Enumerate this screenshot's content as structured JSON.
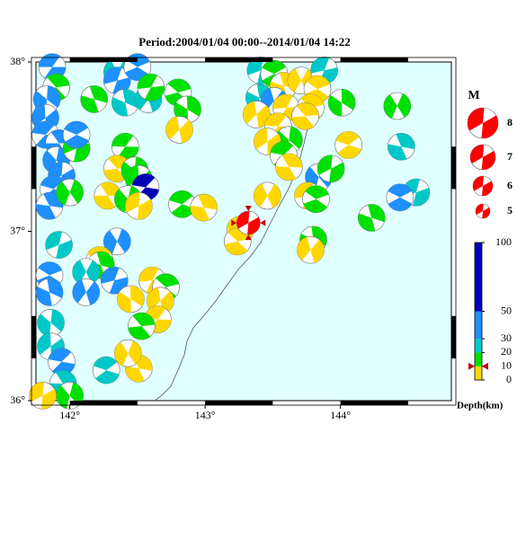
{
  "title": "Period:2004/01/04 00:00--2014/01/04 14:22",
  "map": {
    "xlim": [
      141.75,
      144.82
    ],
    "ylim": [
      36,
      38
    ],
    "xticks": [
      {
        "value": 142,
        "label": "142°"
      },
      {
        "value": 143,
        "label": "143°"
      },
      {
        "value": 144,
        "label": "144°"
      }
    ],
    "yticks": [
      {
        "value": 36,
        "label": "36°"
      },
      {
        "value": 37,
        "label": "37°"
      },
      {
        "value": 38,
        "label": "38°"
      }
    ],
    "background": "#e0ffff"
  },
  "events": [
    [
      141.87,
      37.97,
      40
    ],
    [
      141.9,
      37.85,
      15
    ],
    [
      141.83,
      37.78,
      40
    ],
    [
      141.82,
      37.67,
      40
    ],
    [
      141.82,
      37.57,
      40
    ],
    [
      141.92,
      37.52,
      40
    ],
    [
      141.9,
      37.42,
      40
    ],
    [
      141.94,
      37.33,
      40
    ],
    [
      141.88,
      37.25,
      40
    ],
    [
      141.85,
      37.15,
      40
    ],
    [
      142.0,
      37.23,
      15
    ],
    [
      142.05,
      37.49,
      15
    ],
    [
      142.05,
      37.57,
      40
    ],
    [
      142.18,
      37.78,
      15
    ],
    [
      142.35,
      37.94,
      25
    ],
    [
      142.35,
      37.89,
      40
    ],
    [
      142.5,
      37.97,
      40
    ],
    [
      142.41,
      37.76,
      25
    ],
    [
      142.58,
      37.78,
      25
    ],
    [
      142.6,
      37.85,
      15
    ],
    [
      142.8,
      37.82,
      15
    ],
    [
      142.87,
      37.72,
      15
    ],
    [
      142.81,
      37.6,
      5
    ],
    [
      142.41,
      37.5,
      15
    ],
    [
      142.35,
      37.37,
      5
    ],
    [
      142.48,
      37.36,
      15
    ],
    [
      142.51,
      37.31,
      15
    ],
    [
      142.56,
      37.26,
      70
    ],
    [
      142.28,
      37.21,
      5
    ],
    [
      142.43,
      37.19,
      15
    ],
    [
      142.51,
      37.15,
      5
    ],
    [
      142.83,
      37.16,
      15
    ],
    [
      142.99,
      37.14,
      5
    ],
    [
      142.35,
      36.94,
      40
    ],
    [
      141.92,
      36.92,
      25
    ],
    [
      142.22,
      36.83,
      5
    ],
    [
      142.23,
      36.8,
      15
    ],
    [
      142.12,
      36.76,
      25
    ],
    [
      142.33,
      36.71,
      40
    ],
    [
      141.85,
      36.74,
      40
    ],
    [
      141.85,
      36.64,
      40
    ],
    [
      142.12,
      36.64,
      40
    ],
    [
      142.61,
      36.71,
      5
    ],
    [
      142.71,
      36.67,
      15
    ],
    [
      142.45,
      36.6,
      5
    ],
    [
      142.67,
      36.59,
      5
    ],
    [
      142.65,
      36.48,
      5
    ],
    [
      142.53,
      36.44,
      15
    ],
    [
      141.86,
      36.46,
      25
    ],
    [
      141.86,
      36.32,
      25
    ],
    [
      141.94,
      36.23,
      40
    ],
    [
      141.95,
      36.1,
      25
    ],
    [
      142.0,
      36.03,
      15
    ],
    [
      141.8,
      36.03,
      5
    ],
    [
      142.27,
      36.18,
      25
    ],
    [
      142.51,
      36.19,
      5
    ],
    [
      142.43,
      36.28,
      5
    ],
    [
      143.41,
      37.95,
      25
    ],
    [
      143.51,
      37.93,
      15
    ],
    [
      143.58,
      37.86,
      5
    ],
    [
      143.71,
      37.89,
      5
    ],
    [
      143.88,
      37.95,
      25
    ],
    [
      143.83,
      37.84,
      5
    ],
    [
      143.4,
      37.79,
      25
    ],
    [
      143.51,
      37.77,
      40
    ],
    [
      143.6,
      37.73,
      5
    ],
    [
      143.78,
      37.73,
      5
    ],
    [
      144.01,
      37.76,
      15
    ],
    [
      143.38,
      37.69,
      5
    ],
    [
      143.54,
      37.62,
      5
    ],
    [
      143.74,
      37.68,
      5
    ],
    [
      143.62,
      37.54,
      15
    ],
    [
      143.46,
      37.53,
      5
    ],
    [
      143.58,
      37.45,
      15
    ],
    [
      143.62,
      37.38,
      5
    ],
    [
      143.84,
      37.32,
      40
    ],
    [
      143.93,
      37.37,
      15
    ],
    [
      144.06,
      37.51,
      5
    ],
    [
      144.45,
      37.5,
      25
    ],
    [
      144.42,
      37.74,
      15
    ],
    [
      144.56,
      37.23,
      25
    ],
    [
      144.44,
      37.2,
      40
    ],
    [
      144.23,
      37.08,
      15
    ],
    [
      143.46,
      37.21,
      5
    ],
    [
      143.76,
      37.21,
      5
    ],
    [
      143.82,
      37.19,
      15
    ],
    [
      143.8,
      36.95,
      15
    ],
    [
      143.78,
      36.89,
      5
    ],
    [
      143.26,
      37.01,
      5
    ],
    [
      143.24,
      36.94,
      5
    ]
  ],
  "main_event": {
    "lon": 143.32,
    "lat": 37.05,
    "depth": 10,
    "color": "#ff0000"
  },
  "magnitude_legend": {
    "title": "M",
    "values": [
      8,
      7,
      6,
      5
    ],
    "color": "#ff0000"
  },
  "depth_scale": {
    "label": "Depth(km)",
    "lim": [
      0,
      100
    ],
    "ticks": [
      0,
      10,
      20,
      30,
      50,
      100
    ],
    "colors": [
      "#ffd700",
      "#00e000",
      "#00c8c8",
      "#1e90ff",
      "#0000b4"
    ]
  }
}
